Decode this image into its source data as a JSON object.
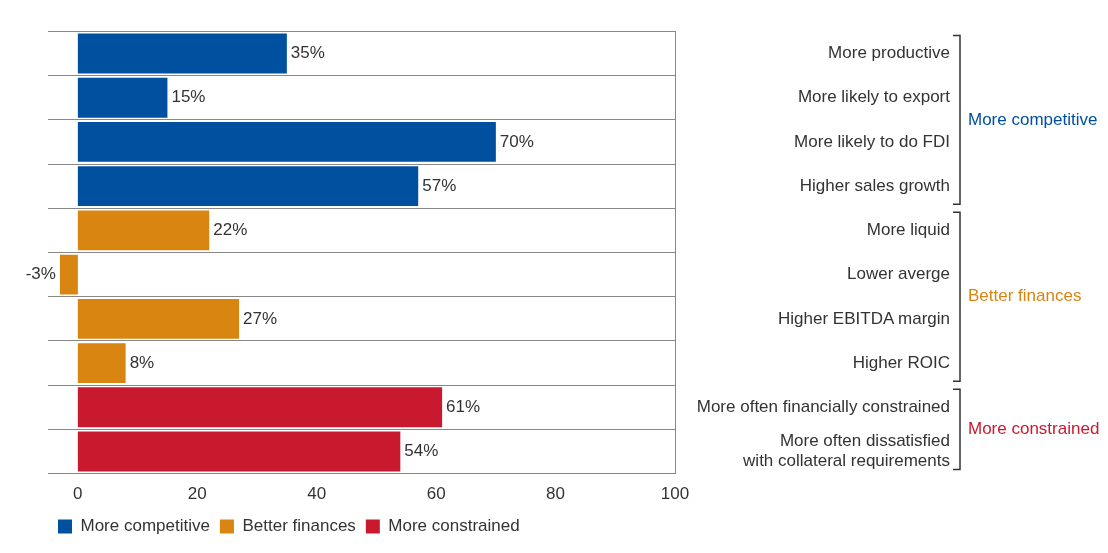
{
  "chart_data": {
    "type": "bar",
    "orientation": "horizontal",
    "categories": [
      "More productive",
      "More likely to export",
      "More likely to do FDI",
      "Higher sales growth",
      "More liquid",
      "Lower averge",
      "Higher EBITDA margin",
      "Higher ROIC",
      "More often financially constrained",
      "More often dissatisfied\nwith collateral requirements"
    ],
    "series": [
      {
        "name": "More competitive",
        "color": "#0050a0",
        "values": [
          35,
          15,
          70,
          57,
          null,
          null,
          null,
          null,
          null,
          null
        ],
        "value_labels": [
          "35%",
          "15%",
          "70%",
          "57%",
          null,
          null,
          null,
          null,
          null,
          null
        ]
      },
      {
        "name": "Better finances",
        "color": "#d98512",
        "values": [
          null,
          null,
          null,
          null,
          22,
          -3,
          27,
          8,
          null,
          null
        ],
        "value_labels": [
          null,
          null,
          null,
          null,
          "22%",
          "-3%",
          "27%",
          "8%",
          null,
          null
        ]
      },
      {
        "name": "More constrained",
        "color": "#c8192e",
        "values": [
          null,
          null,
          null,
          null,
          null,
          null,
          null,
          null,
          61,
          54
        ],
        "value_labels": [
          null,
          null,
          null,
          null,
          null,
          null,
          null,
          null,
          "61%",
          "54%"
        ]
      }
    ],
    "xlim": [
      -5,
      100
    ],
    "xticks": [
      0,
      20,
      40,
      60,
      80,
      100
    ],
    "grid": "y",
    "legend": "bottom left"
  }
}
